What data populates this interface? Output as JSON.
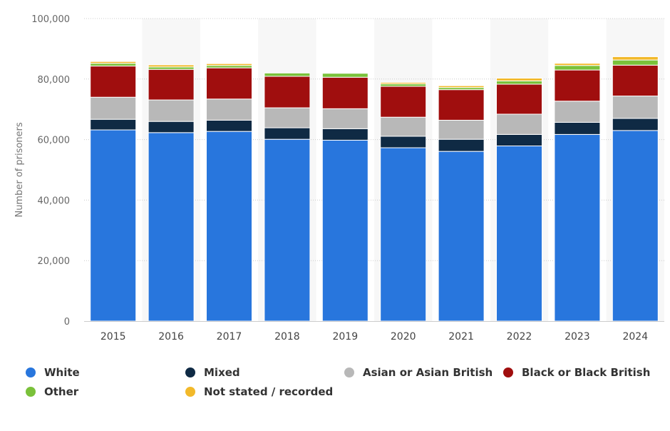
{
  "chart_data": {
    "type": "bar",
    "stacked": true,
    "title": "",
    "xlabel": "",
    "ylabel": "Number of prisoners",
    "ylim": [
      0,
      100000
    ],
    "yticks": [
      0,
      20000,
      40000,
      60000,
      80000,
      100000
    ],
    "ytick_labels": [
      "0",
      "20,000",
      "40,000",
      "60,000",
      "80,000",
      "100,000"
    ],
    "categories": [
      "2015",
      "2016",
      "2017",
      "2018",
      "2019",
      "2020",
      "2021",
      "2022",
      "2023",
      "2024"
    ],
    "series": [
      {
        "name": "White",
        "color": "#2876dd",
        "values": [
          63200,
          62300,
          62700,
          60100,
          59800,
          57300,
          56100,
          57900,
          61700,
          63000
        ]
      },
      {
        "name": "Mixed",
        "color": "#0f2a44",
        "values": [
          3500,
          3700,
          3700,
          3800,
          3800,
          3800,
          4000,
          3800,
          4000,
          4000
        ]
      },
      {
        "name": "Asian or Asian British",
        "color": "#b8b8b8",
        "values": [
          7300,
          7100,
          7000,
          6600,
          6600,
          6300,
          6300,
          6700,
          7000,
          7400
        ]
      },
      {
        "name": "Black or Black British",
        "color": "#a00e0e",
        "values": [
          10300,
          10100,
          10300,
          10400,
          10400,
          10200,
          10100,
          9900,
          10300,
          10200
        ]
      },
      {
        "name": "Other",
        "color": "#7ac13a",
        "values": [
          900,
          800,
          800,
          1100,
          1300,
          800,
          700,
          1100,
          1500,
          1700
        ]
      },
      {
        "name": "Not stated / recorded",
        "color": "#f2b92a",
        "values": [
          600,
          700,
          600,
          0,
          0,
          500,
          600,
          900,
          700,
          1100
        ]
      }
    ],
    "grid": true,
    "legend_position": "bottom"
  }
}
